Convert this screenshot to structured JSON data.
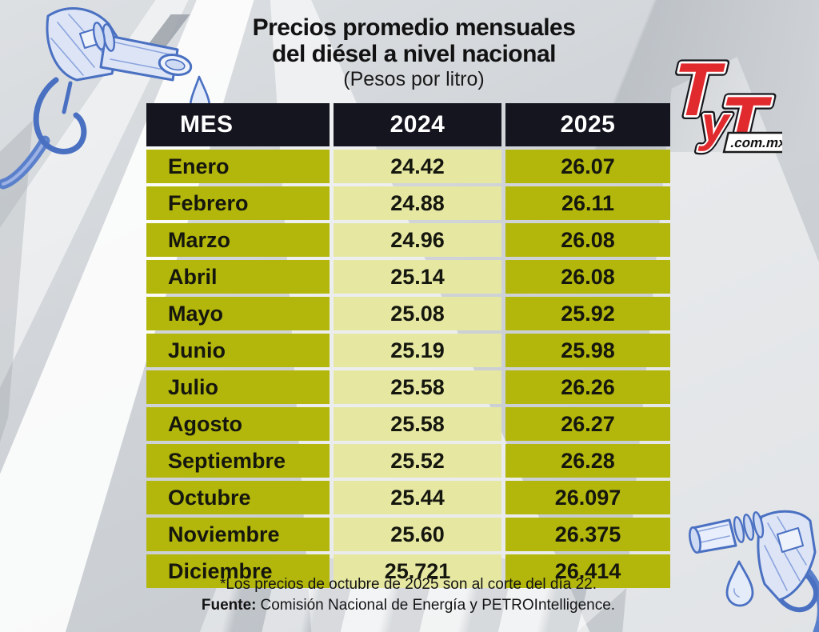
{
  "title": {
    "line1": "Precios promedio mensuales",
    "line2": "del diésel a nivel nacional",
    "subtitle": "(Pesos por litro)"
  },
  "logo": {
    "t1": "T",
    "y": "y",
    "t2": "T",
    "domain": ".com.mx"
  },
  "table": {
    "headers": [
      "MES",
      "2024",
      "2025"
    ],
    "rows": [
      {
        "mes": "Enero",
        "y2024": "24.42",
        "y2025": "26.07"
      },
      {
        "mes": "Febrero",
        "y2024": "24.88",
        "y2025": "26.11"
      },
      {
        "mes": "Marzo",
        "y2024": "24.96",
        "y2025": "26.08"
      },
      {
        "mes": "Abril",
        "y2024": "25.14",
        "y2025": "26.08"
      },
      {
        "mes": "Mayo",
        "y2024": "25.08",
        "y2025": "25.92"
      },
      {
        "mes": "Junio",
        "y2024": "25.19",
        "y2025": "25.98"
      },
      {
        "mes": "Julio",
        "y2024": "25.58",
        "y2025": "26.26"
      },
      {
        "mes": "Agosto",
        "y2024": "25.58",
        "y2025": "26.27"
      },
      {
        "mes": "Septiembre",
        "y2024": "25.52",
        "y2025": "26.28"
      },
      {
        "mes": "Octubre",
        "y2024": "25.44",
        "y2025": "26.097"
      },
      {
        "mes": "Noviembre",
        "y2024": "25.60",
        "y2025": "26.375"
      },
      {
        "mes": "Diciembre",
        "y2024": "25.721",
        "y2025": "26.414"
      }
    ]
  },
  "footnotes": {
    "note": "*Los precios de octubre de 2025 son al corte del día 22.",
    "source_label": "Fuente:",
    "source_text": "Comisión Nacional de Energía y PETROIntelligence."
  },
  "colors": {
    "header_bg": "#14151f",
    "olive": "#b3b70b",
    "light_yellow": "#e6e8a2",
    "logo_red": "#e02a2e",
    "background_silver": "#cdd2d6",
    "text_dark": "#15160e",
    "illustration_blue": "#4a70c2"
  },
  "chart_data": {
    "type": "table",
    "title": "Precios promedio mensuales del diésel a nivel nacional",
    "units": "Pesos por litro",
    "categories": [
      "Enero",
      "Febrero",
      "Marzo",
      "Abril",
      "Mayo",
      "Junio",
      "Julio",
      "Agosto",
      "Septiembre",
      "Octubre",
      "Noviembre",
      "Diciembre"
    ],
    "series": [
      {
        "name": "2024",
        "values": [
          24.42,
          24.88,
          24.96,
          25.14,
          25.08,
          25.19,
          25.58,
          25.58,
          25.52,
          25.44,
          25.6,
          25.721
        ]
      },
      {
        "name": "2025",
        "values": [
          26.07,
          26.11,
          26.08,
          26.08,
          25.92,
          25.98,
          26.26,
          26.27,
          26.28,
          26.097,
          26.375,
          26.414
        ]
      }
    ],
    "note": "*Los precios de octubre de 2025 son al corte del día 22.",
    "source": "Comisión Nacional de Energía y PETROIntelligence"
  }
}
